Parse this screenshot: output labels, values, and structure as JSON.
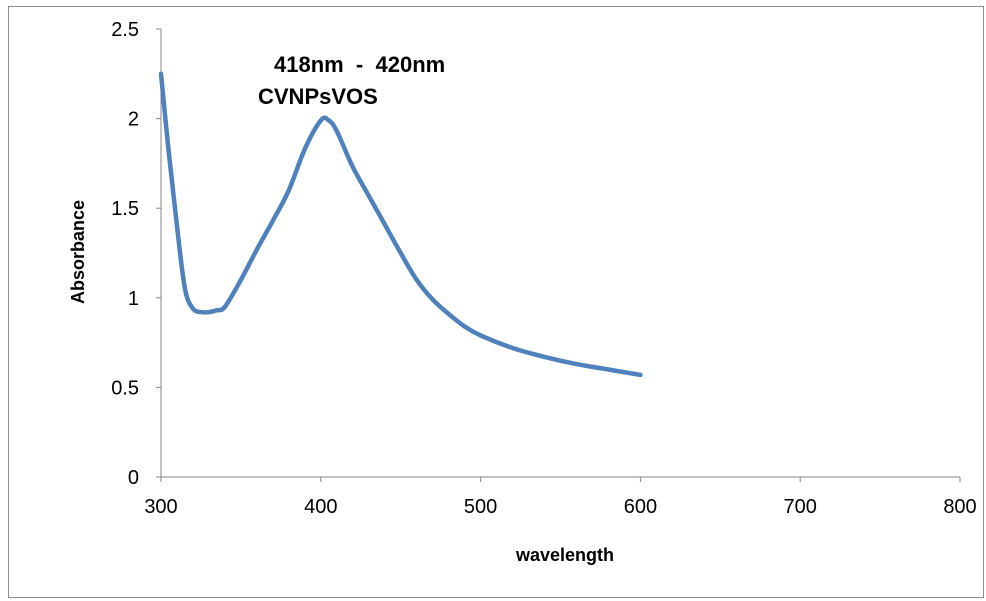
{
  "chart_data": {
    "type": "line",
    "title": "",
    "xlabel": "wavelength",
    "ylabel": "Absorbance",
    "xlim": [
      300,
      800
    ],
    "ylim": [
      0,
      2.5
    ],
    "x_ticks": [
      "300",
      "400",
      "500",
      "600",
      "700",
      "800"
    ],
    "y_ticks": [
      "0",
      "0.5",
      "1",
      "1.5",
      "2",
      "2.5"
    ],
    "grid": false,
    "annotations": [
      "418nm  -  420nm",
      "CVNPsVOS"
    ],
    "series": [
      {
        "color": "#4f81bd",
        "x": [
          300,
          305,
          310,
          315,
          320,
          325,
          330,
          335,
          340,
          350,
          360,
          370,
          380,
          390,
          400,
          405,
          410,
          420,
          430,
          440,
          450,
          460,
          470,
          480,
          490,
          500,
          520,
          540,
          560,
          580,
          600
        ],
        "y": [
          2.25,
          1.8,
          1.4,
          1.05,
          0.94,
          0.92,
          0.92,
          0.93,
          0.95,
          1.1,
          1.27,
          1.43,
          1.6,
          1.83,
          1.99,
          1.99,
          1.93,
          1.73,
          1.57,
          1.41,
          1.25,
          1.1,
          0.99,
          0.91,
          0.84,
          0.79,
          0.72,
          0.67,
          0.63,
          0.6,
          0.57
        ]
      }
    ]
  }
}
